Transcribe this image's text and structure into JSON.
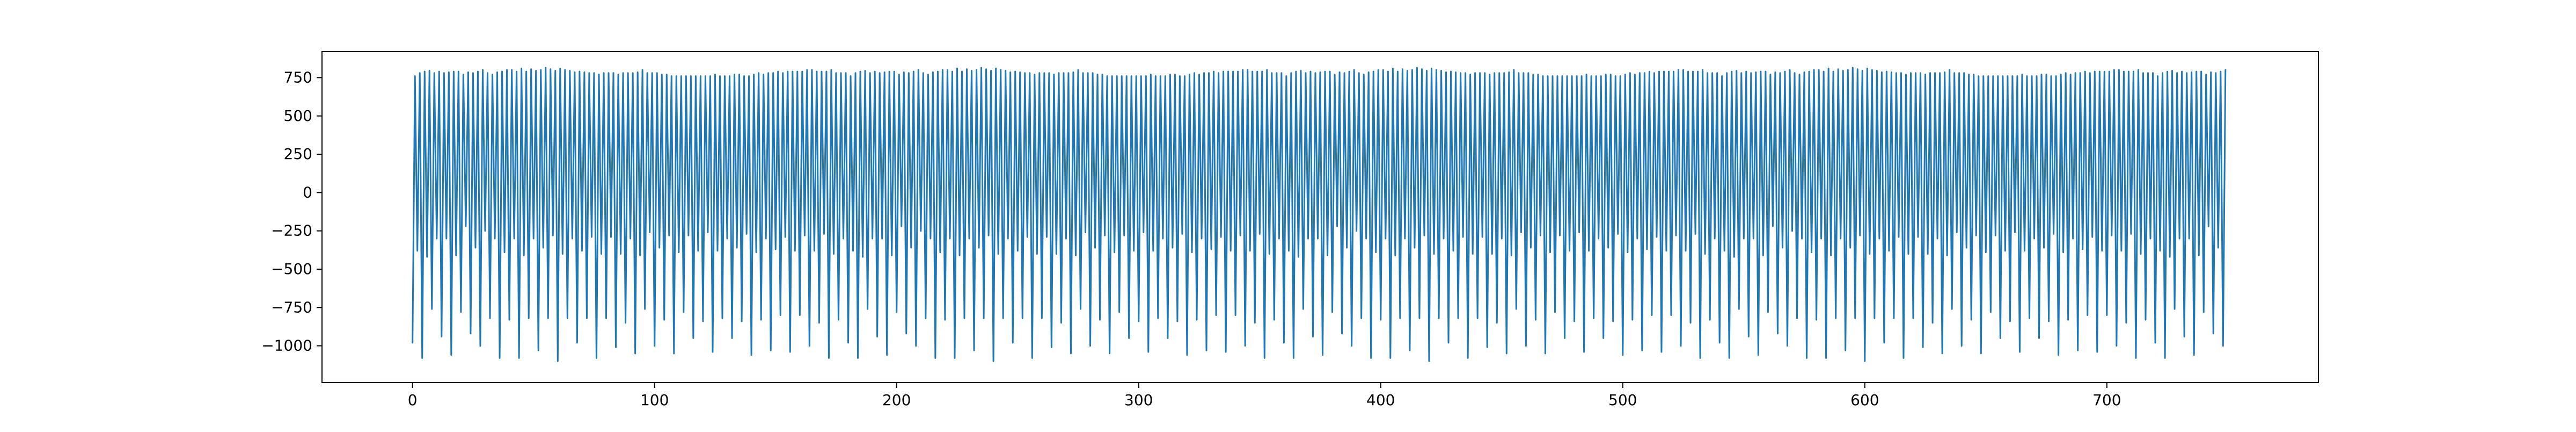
{
  "chart_data": {
    "type": "line",
    "title": "",
    "xlabel": "",
    "ylabel": "",
    "xlim": [
      -37.4,
      787.4
    ],
    "ylim": [
      -1240,
      920
    ],
    "x_ticks": [
      0,
      100,
      200,
      300,
      400,
      500,
      600,
      700
    ],
    "y_ticks": [
      -1000,
      -750,
      -500,
      -250,
      0,
      250,
      500,
      750
    ],
    "x_tick_labels": [
      "0",
      "100",
      "200",
      "300",
      "400",
      "500",
      "600",
      "700"
    ],
    "y_tick_labels": [
      "−1000",
      "−750",
      "−500",
      "−250",
      "0",
      "250",
      "500",
      "750"
    ],
    "grid": false,
    "legend": "none",
    "line_color": "#1f77b4",
    "series": [
      {
        "x_start": 0,
        "x_step": 1,
        "pattern": "repeating cycle of about 5 samples: a deep trough, a sharp rise to a peak, a shallow dip, then a second peak",
        "values": [
          -980,
          760,
          -380,
          780,
          -1080,
          790,
          -420,
          795,
          -760,
          780,
          -300,
          790,
          -940,
          780,
          -300,
          785,
          -1060,
          790,
          -410,
          790,
          -780,
          770,
          -220,
          785,
          -920,
          780,
          -360,
          790,
          -1000,
          800,
          -250,
          780,
          -820,
          770,
          -300,
          785,
          -1080,
          790,
          -390,
          800,
          -830,
          800,
          -300,
          790,
          -1080,
          810,
          -410,
          790,
          -820,
          805,
          -300,
          795,
          -1030,
          800,
          -360,
          815,
          -820,
          805,
          -280,
          795,
          -1100,
          810,
          -400,
          800,
          -820,
          795,
          -300,
          785,
          -980,
          790,
          -380,
          785,
          -820,
          780,
          -290,
          780,
          -1080,
          770,
          -400,
          780,
          -820,
          780,
          -290,
          780,
          -1010,
          770,
          -400,
          780,
          -850,
          780,
          -300,
          780,
          -1050,
          785,
          -410,
          800,
          -760,
          780,
          -260,
          780,
          -1000,
          780,
          -360,
          770,
          -830,
          770,
          -280,
          760,
          -1050,
          760,
          -390,
          760,
          -780,
          760,
          -280,
          760,
          -950,
          760,
          -380,
          760,
          -840,
          760,
          -260,
          760,
          -1040,
          770,
          -380,
          760,
          -820,
          760,
          -300,
          760,
          -950,
          770,
          -360,
          770,
          -840,
          760,
          -270,
          760,
          -1060,
          770,
          -390,
          780,
          -830,
          770,
          -300,
          780,
          -1030,
          780,
          -370,
          790,
          -800,
          780,
          -290,
          790,
          -1040,
          790,
          -380,
          790,
          -800,
          790,
          -280,
          800,
          -1000,
          800,
          -380,
          790,
          -850,
          790,
          -270,
          790,
          -1080,
          800,
          -400,
          780,
          -830,
          780,
          -300,
          780
        ]
      }
    ]
  }
}
